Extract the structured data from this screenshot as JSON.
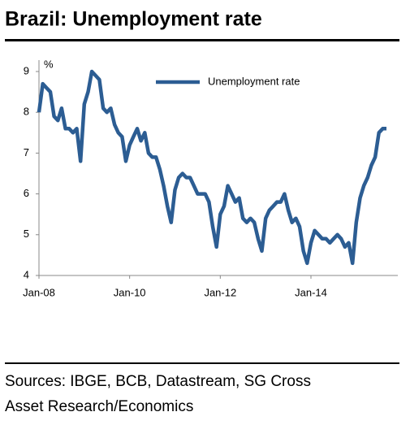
{
  "chart_data": {
    "type": "line",
    "title": "Brazil: Unemployment rate",
    "y_unit": "%",
    "x": [
      "2008-01",
      "2008-02",
      "2008-03",
      "2008-04",
      "2008-05",
      "2008-06",
      "2008-07",
      "2008-08",
      "2008-09",
      "2008-10",
      "2008-11",
      "2008-12",
      "2009-01",
      "2009-02",
      "2009-03",
      "2009-04",
      "2009-05",
      "2009-06",
      "2009-07",
      "2009-08",
      "2009-09",
      "2009-10",
      "2009-11",
      "2009-12",
      "2010-01",
      "2010-02",
      "2010-03",
      "2010-04",
      "2010-05",
      "2010-06",
      "2010-07",
      "2010-08",
      "2010-09",
      "2010-10",
      "2010-11",
      "2010-12",
      "2011-01",
      "2011-02",
      "2011-03",
      "2011-04",
      "2011-05",
      "2011-06",
      "2011-07",
      "2011-08",
      "2011-09",
      "2011-10",
      "2011-11",
      "2011-12",
      "2012-01",
      "2012-02",
      "2012-03",
      "2012-04",
      "2012-05",
      "2012-06",
      "2012-07",
      "2012-08",
      "2012-09",
      "2012-10",
      "2012-11",
      "2012-12",
      "2013-01",
      "2013-02",
      "2013-03",
      "2013-04",
      "2013-05",
      "2013-06",
      "2013-07",
      "2013-08",
      "2013-09",
      "2013-10",
      "2013-11",
      "2013-12",
      "2014-01",
      "2014-02",
      "2014-03",
      "2014-04",
      "2014-05",
      "2014-06",
      "2014-07",
      "2014-08",
      "2014-09",
      "2014-10",
      "2014-11",
      "2014-12",
      "2015-01",
      "2015-02",
      "2015-03",
      "2015-04",
      "2015-05",
      "2015-06",
      "2015-07",
      "2015-08",
      "2015-09"
    ],
    "series": [
      {
        "name": "Unemployment  rate",
        "color": "#2c5d93",
        "values": [
          8.0,
          8.7,
          8.6,
          8.5,
          7.9,
          7.8,
          8.1,
          7.6,
          7.6,
          7.5,
          7.6,
          6.8,
          8.2,
          8.5,
          9.0,
          8.9,
          8.8,
          8.1,
          8.0,
          8.1,
          7.7,
          7.5,
          7.4,
          6.8,
          7.2,
          7.4,
          7.6,
          7.3,
          7.5,
          7.0,
          6.9,
          6.9,
          6.6,
          6.2,
          5.7,
          5.3,
          6.1,
          6.4,
          6.5,
          6.4,
          6.4,
          6.2,
          6.0,
          6.0,
          6.0,
          5.8,
          5.2,
          4.7,
          5.5,
          5.7,
          6.2,
          6.0,
          5.8,
          5.9,
          5.4,
          5.3,
          5.4,
          5.3,
          4.9,
          4.6,
          5.4,
          5.6,
          5.7,
          5.8,
          5.8,
          6.0,
          5.6,
          5.3,
          5.4,
          5.2,
          4.6,
          4.3,
          4.8,
          5.1,
          5.0,
          4.9,
          4.9,
          4.8,
          4.9,
          5.0,
          4.9,
          4.7,
          4.8,
          4.3,
          5.3,
          5.9,
          6.2,
          6.4,
          6.7,
          6.9,
          7.5,
          7.6,
          7.6
        ]
      }
    ],
    "xlim": [
      "2008-01",
      "2015-12"
    ],
    "xticks": [
      {
        "value": "2008-01",
        "label": "Jan-08"
      },
      {
        "value": "2010-01",
        "label": "Jan-10"
      },
      {
        "value": "2012-01",
        "label": "Jan-12"
      },
      {
        "value": "2014-01",
        "label": "Jan-14"
      }
    ],
    "ylim": [
      4,
      9
    ],
    "yticks": [
      4,
      5,
      6,
      7,
      8,
      9
    ],
    "grid": false,
    "legend": "top",
    "source": [
      "Sources: IBGE, BCB, Datastream, SG Cross",
      "Asset Research/Economics"
    ]
  }
}
